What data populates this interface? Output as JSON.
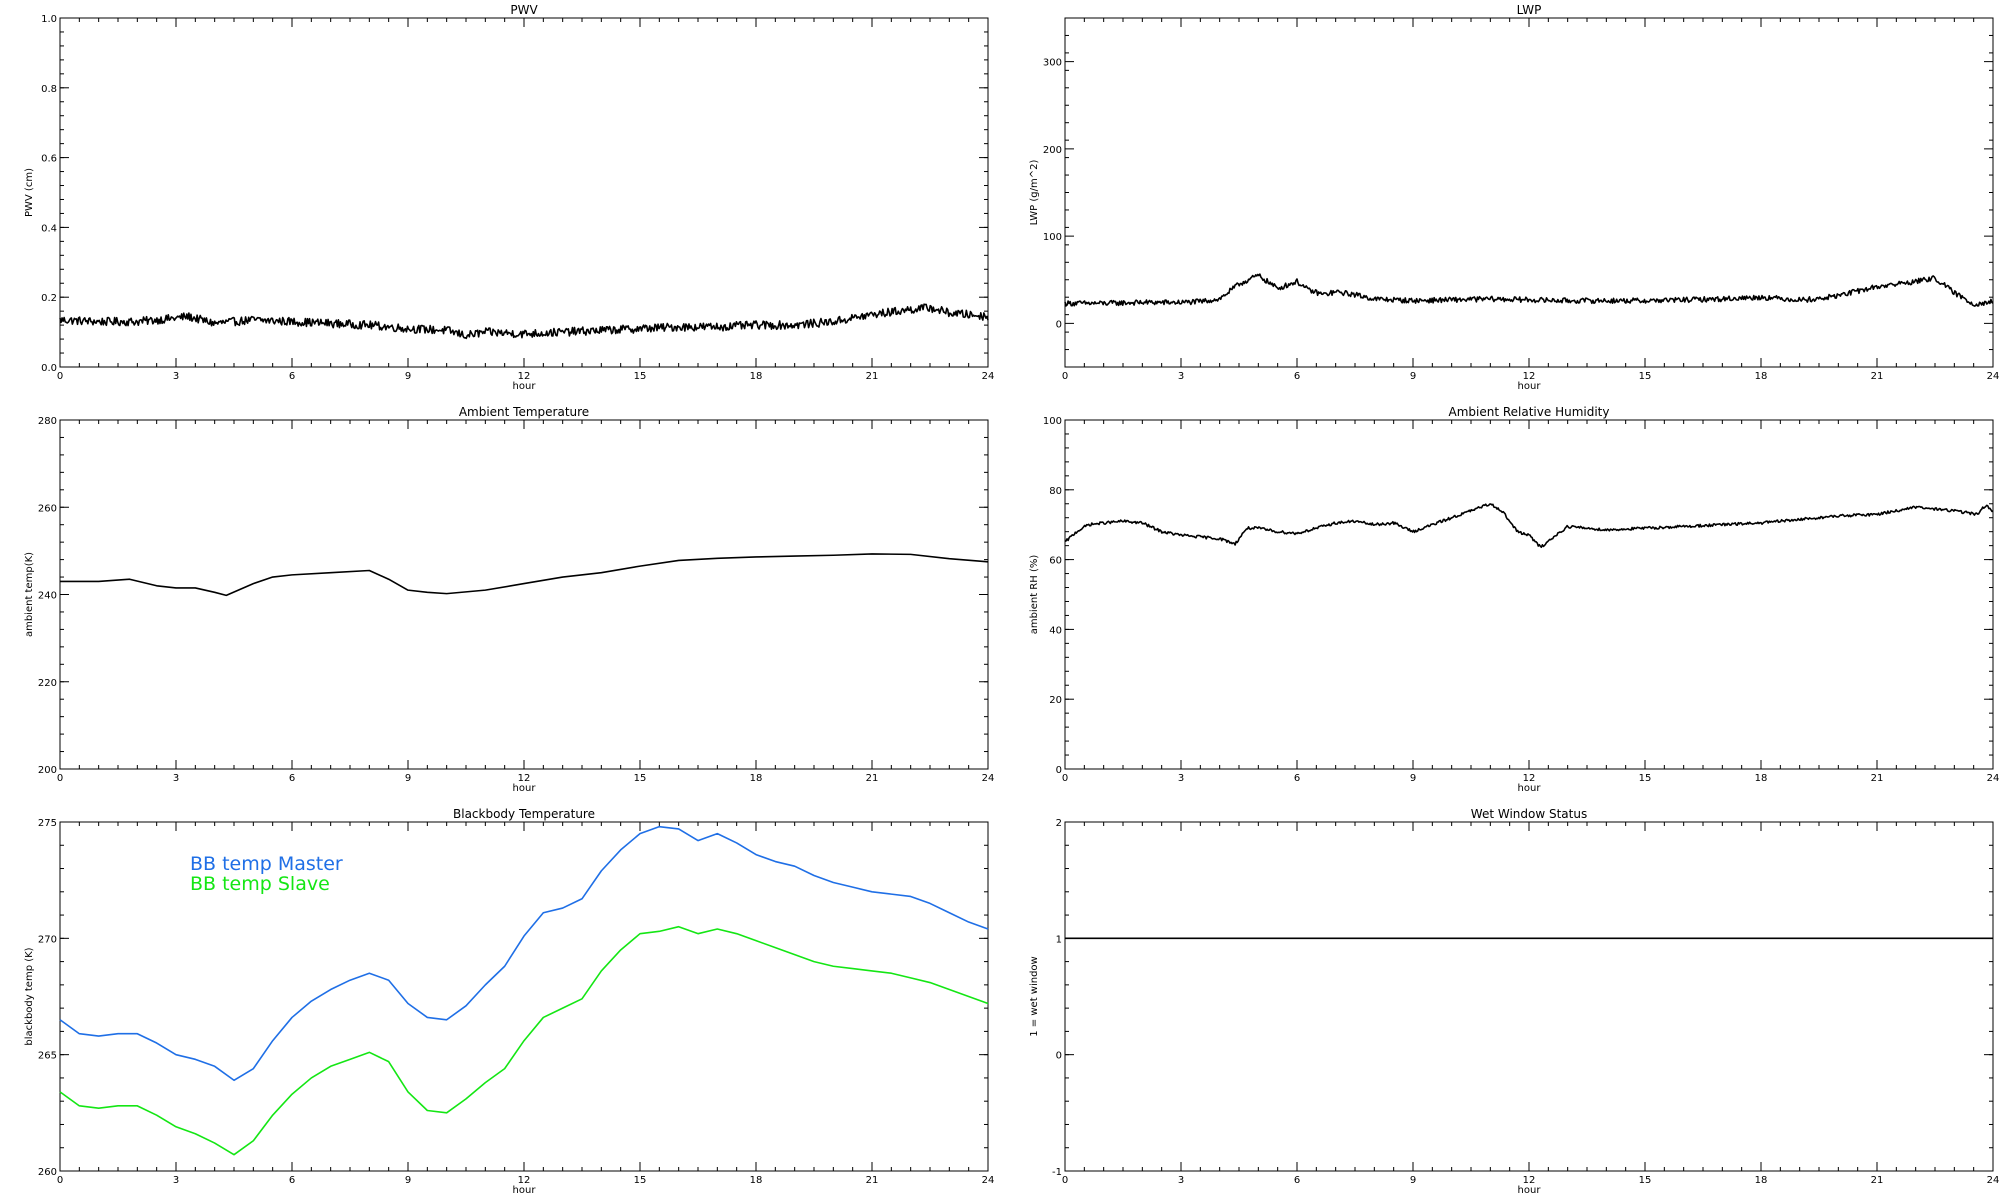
{
  "chart_data": [
    {
      "type": "line",
      "title": "PWV",
      "xlabel": "hour",
      "ylabel": "PWV (cm)",
      "xlim": [
        0,
        24
      ],
      "ylim": [
        0.0,
        1.0
      ],
      "xticks": [
        0,
        3,
        6,
        9,
        12,
        15,
        18,
        21,
        24
      ],
      "yticks": [
        0.0,
        0.2,
        0.4,
        0.6,
        0.8,
        1.0
      ],
      "ytick_labels": [
        "0.0",
        "0.2",
        "0.4",
        "0.6",
        "0.8",
        "1.0"
      ],
      "noise": 0.012,
      "series": [
        {
          "color": "#000000",
          "x": [
            0,
            1,
            2,
            3,
            3.3,
            4,
            5,
            6,
            7,
            8,
            9,
            10,
            10.5,
            11,
            12,
            13,
            14,
            15,
            16,
            17,
            18,
            19,
            20,
            21,
            22,
            22.5,
            23,
            24
          ],
          "y": [
            0.135,
            0.13,
            0.13,
            0.14,
            0.145,
            0.125,
            0.135,
            0.13,
            0.125,
            0.12,
            0.11,
            0.105,
            0.09,
            0.1,
            0.095,
            0.1,
            0.105,
            0.11,
            0.115,
            0.115,
            0.12,
            0.12,
            0.13,
            0.15,
            0.165,
            0.17,
            0.155,
            0.145
          ]
        }
      ]
    },
    {
      "type": "line",
      "title": "LWP",
      "xlabel": "hour",
      "ylabel": "LWP (g/m^2)",
      "xlim": [
        0,
        24
      ],
      "ylim": [
        -50,
        350
      ],
      "xticks": [
        0,
        3,
        6,
        9,
        12,
        15,
        18,
        21,
        24
      ],
      "yticks": [
        0,
        100,
        200,
        300
      ],
      "ytick_labels": [
        "0",
        "100",
        "200",
        "300"
      ],
      "noise": 3,
      "series": [
        {
          "color": "#000000",
          "x": [
            0,
            1,
            2,
            3,
            3.5,
            4,
            4.5,
            5,
            5.5,
            6,
            6.3,
            6.7,
            7,
            7.5,
            8,
            9,
            10,
            11,
            12,
            13,
            14,
            15,
            16,
            17,
            18,
            19,
            19.5,
            20,
            21,
            22,
            22.5,
            23,
            23.5,
            24
          ],
          "y": [
            23,
            23,
            24,
            24,
            25,
            28,
            45,
            55,
            40,
            48,
            38,
            33,
            36,
            33,
            28,
            26,
            27,
            28,
            27,
            26,
            26,
            26,
            27,
            28,
            30,
            27,
            28,
            32,
            42,
            48,
            52,
            35,
            22,
            25
          ]
        }
      ]
    },
    {
      "type": "line",
      "title": "Ambient Temperature",
      "xlabel": "hour",
      "ylabel": "ambient temp(K)",
      "xlim": [
        0,
        24
      ],
      "ylim": [
        200,
        280
      ],
      "xticks": [
        0,
        3,
        6,
        9,
        12,
        15,
        18,
        21,
        24
      ],
      "yticks": [
        200,
        220,
        240,
        260,
        280
      ],
      "ytick_labels": [
        "200",
        "220",
        "240",
        "260",
        "280"
      ],
      "noise": 0,
      "series": [
        {
          "color": "#000000",
          "x": [
            0,
            0.5,
            1,
            1.8,
            2.5,
            3,
            3.5,
            4,
            4.3,
            5,
            5.5,
            6,
            7,
            8,
            8.5,
            9,
            9.5,
            10,
            11,
            12,
            13,
            14,
            15,
            16,
            17,
            18,
            19,
            20,
            21,
            22,
            23,
            24
          ],
          "y": [
            243,
            243,
            243,
            243.5,
            242,
            241.5,
            241.5,
            240.5,
            239.8,
            242.5,
            244,
            244.5,
            245,
            245.5,
            243.5,
            241,
            240.5,
            240.2,
            241,
            242.5,
            244,
            245,
            246.5,
            247.8,
            248.3,
            248.6,
            248.8,
            249,
            249.3,
            249.2,
            248.2,
            247.5
          ]
        }
      ]
    },
    {
      "type": "line",
      "title": "Ambient Relative Humidity",
      "xlabel": "hour",
      "ylabel": "ambient RH (%)",
      "xlim": [
        0,
        24
      ],
      "ylim": [
        0,
        100
      ],
      "xticks": [
        0,
        3,
        6,
        9,
        12,
        15,
        18,
        21,
        24
      ],
      "yticks": [
        0,
        20,
        40,
        60,
        80,
        100
      ],
      "ytick_labels": [
        "0",
        "20",
        "40",
        "60",
        "80",
        "100"
      ],
      "noise": 0.4,
      "series": [
        {
          "color": "#000000",
          "x": [
            0,
            0.3,
            0.6,
            1,
            1.5,
            2,
            2.5,
            3,
            3.5,
            4,
            4.4,
            4.7,
            5,
            5.5,
            6,
            6.5,
            7,
            7.5,
            8,
            8.5,
            9,
            9.5,
            10,
            10.5,
            11,
            11.3,
            11.7,
            12,
            12.3,
            12.7,
            13,
            14,
            15,
            16,
            17,
            18,
            19,
            20,
            21,
            22,
            23,
            23.6,
            23.8,
            24
          ],
          "y": [
            65,
            68,
            70,
            70.5,
            71,
            70.5,
            68,
            67,
            66.5,
            66,
            64.5,
            69,
            69,
            68,
            67.5,
            69,
            70.5,
            71,
            70,
            70.5,
            68,
            70,
            72,
            74,
            76,
            74,
            68,
            67,
            63.5,
            67,
            69.5,
            68.5,
            69,
            69.5,
            70,
            70.5,
            71.5,
            72.5,
            73,
            75,
            74,
            73,
            75.5,
            74
          ]
        }
      ]
    },
    {
      "type": "line",
      "title": "Blackbody Temperature",
      "xlabel": "hour",
      "ylabel": "blackbody temp (K)",
      "xlim": [
        0,
        24
      ],
      "ylim": [
        260,
        275
      ],
      "xticks": [
        0,
        3,
        6,
        9,
        12,
        15,
        18,
        21,
        24
      ],
      "yticks": [
        260,
        265,
        270,
        275
      ],
      "ytick_labels": [
        "260",
        "265",
        "270",
        "275"
      ],
      "noise": 0,
      "legend": "top-left",
      "series": [
        {
          "name": "BB temp Master",
          "color": "#1f6fe6",
          "x": [
            0,
            0.5,
            1,
            1.5,
            2,
            2.5,
            3,
            3.5,
            4,
            4.5,
            5,
            5.5,
            6,
            6.5,
            7,
            7.5,
            8,
            8.5,
            9,
            9.5,
            10,
            10.5,
            11,
            11.5,
            12,
            12.5,
            13,
            13.5,
            14,
            14.5,
            15,
            15.5,
            16,
            16.5,
            17,
            17.5,
            18,
            18.5,
            19,
            19.5,
            20,
            20.5,
            21,
            21.5,
            22,
            22.5,
            23,
            23.5,
            24
          ],
          "y": [
            266.5,
            265.9,
            265.8,
            265.9,
            265.9,
            265.5,
            265,
            264.8,
            264.5,
            263.9,
            264.4,
            265.6,
            266.6,
            267.3,
            267.8,
            268.2,
            268.5,
            268.2,
            267.2,
            266.6,
            266.5,
            267.1,
            268,
            268.8,
            270.1,
            271.1,
            271.3,
            271.7,
            272.9,
            273.8,
            274.5,
            274.8,
            274.7,
            274.2,
            274.5,
            274.1,
            273.6,
            273.3,
            273.1,
            272.7,
            272.4,
            272.2,
            272,
            271.9,
            271.8,
            271.5,
            271.1,
            270.7,
            270.4
          ]
        },
        {
          "name": "BB temp Slave",
          "color": "#14e614",
          "x": [
            0,
            0.5,
            1,
            1.5,
            2,
            2.5,
            3,
            3.5,
            4,
            4.5,
            5,
            5.5,
            6,
            6.5,
            7,
            7.5,
            8,
            8.5,
            9,
            9.5,
            10,
            10.5,
            11,
            11.5,
            12,
            12.5,
            13,
            13.5,
            14,
            14.5,
            15,
            15.5,
            16,
            16.5,
            17,
            17.5,
            18,
            18.5,
            19,
            19.5,
            20,
            20.5,
            21,
            21.5,
            22,
            22.5,
            23,
            23.5,
            24
          ],
          "y": [
            263.4,
            262.8,
            262.7,
            262.8,
            262.8,
            262.4,
            261.9,
            261.6,
            261.2,
            260.7,
            261.3,
            262.4,
            263.3,
            264,
            264.5,
            264.8,
            265.1,
            264.7,
            263.4,
            262.6,
            262.5,
            263.1,
            263.8,
            264.4,
            265.6,
            266.6,
            267,
            267.4,
            268.6,
            269.5,
            270.2,
            270.3,
            270.5,
            270.2,
            270.4,
            270.2,
            269.9,
            269.6,
            269.3,
            269,
            268.8,
            268.7,
            268.6,
            268.5,
            268.3,
            268.1,
            267.8,
            267.5,
            267.2
          ]
        }
      ]
    },
    {
      "type": "line",
      "title": "Wet Window Status",
      "xlabel": "hour",
      "ylabel": "1 = wet window",
      "xlim": [
        0,
        24
      ],
      "ylim": [
        -1,
        2
      ],
      "xticks": [
        0,
        3,
        6,
        9,
        12,
        15,
        18,
        21,
        24
      ],
      "yticks": [
        -1,
        0,
        1,
        2
      ],
      "ytick_labels": [
        "-1",
        "0",
        "1",
        "2"
      ],
      "noise": 0,
      "series": [
        {
          "color": "#000000",
          "x": [
            0,
            24
          ],
          "y": [
            1,
            1
          ]
        }
      ]
    }
  ]
}
